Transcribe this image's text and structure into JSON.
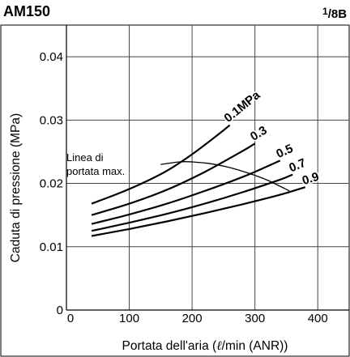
{
  "header": {
    "title": "AM150",
    "size_num": "1",
    "size_den": "/8B"
  },
  "chart_data": {
    "type": "line",
    "xlabel_prefix": "Portata dell'aria (",
    "xlabel_unit": "ℓ",
    "xlabel_suffix": "/min (ANR))",
    "ylabel": "Caduta di pressione (MPa)",
    "xlim": [
      0,
      450
    ],
    "ylim": [
      0,
      0.045
    ],
    "x_ticks": [
      0,
      100,
      200,
      300,
      400
    ],
    "x_tick_labels": [
      "0",
      "100",
      "200",
      "300",
      "400"
    ],
    "y_ticks": [
      0,
      0.01,
      0.02,
      0.03,
      0.04
    ],
    "y_tick_labels": [
      "0",
      "0.01",
      "0.02",
      "0.03",
      "0.04"
    ],
    "grid": true,
    "series": [
      {
        "name": "0.1MPa",
        "x": [
          40,
          80,
          120,
          160,
          200,
          240,
          260
        ],
        "y": [
          0.0168,
          0.0183,
          0.02,
          0.022,
          0.0246,
          0.0276,
          0.0292
        ]
      },
      {
        "name": "0.3",
        "x": [
          40,
          100,
          160,
          220,
          280,
          300
        ],
        "y": [
          0.015,
          0.0168,
          0.019,
          0.0218,
          0.0251,
          0.0263
        ]
      },
      {
        "name": "0.5",
        "x": [
          40,
          100,
          160,
          220,
          280,
          320,
          340
        ],
        "y": [
          0.0136,
          0.0151,
          0.0168,
          0.0188,
          0.021,
          0.0227,
          0.0236
        ]
      },
      {
        "name": "0.7",
        "x": [
          40,
          100,
          160,
          220,
          280,
          340,
          360
        ],
        "y": [
          0.0125,
          0.0138,
          0.0152,
          0.0168,
          0.0186,
          0.0206,
          0.0214
        ]
      },
      {
        "name": "0.9",
        "x": [
          40,
          100,
          160,
          220,
          280,
          340,
          380
        ],
        "y": [
          0.0117,
          0.0128,
          0.014,
          0.0153,
          0.0167,
          0.0182,
          0.0194
        ]
      }
    ],
    "max_flow_curve": {
      "label_line1": "Linea di",
      "label_line2": "portata max.",
      "x": [
        150,
        180,
        200,
        230,
        260,
        290,
        320,
        355
      ],
      "y": [
        0.023,
        0.0234,
        0.0234,
        0.0231,
        0.0225,
        0.0216,
        0.0205,
        0.0188
      ]
    }
  }
}
